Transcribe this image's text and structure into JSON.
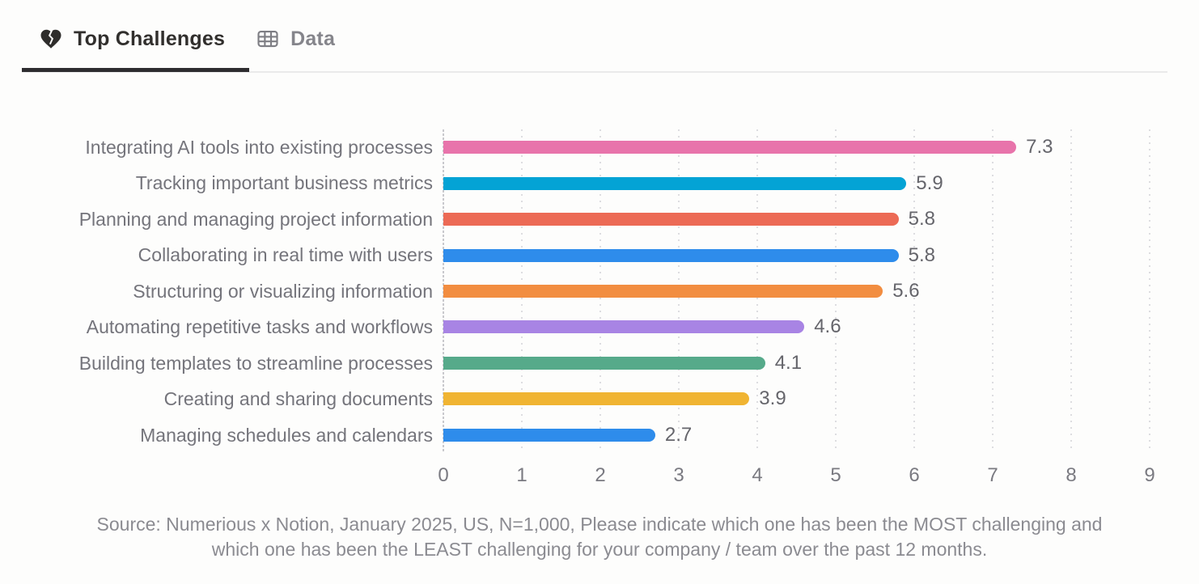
{
  "tabs": [
    {
      "label": "Top Challenges",
      "icon": "broken-heart-icon",
      "active": true
    },
    {
      "label": "Data",
      "icon": "table-icon",
      "active": false
    }
  ],
  "chart_data": {
    "type": "bar",
    "orientation": "horizontal",
    "title": "Top Challenges",
    "categories": [
      "Integrating AI tools into existing processes",
      "Tracking important business metrics",
      "Planning and managing project information",
      "Collaborating in real time with users",
      "Structuring or visualizing information",
      "Automating repetitive tasks and workflows",
      "Building templates to streamline processes",
      "Creating and sharing documents",
      "Managing schedules and calendars"
    ],
    "values": [
      7.3,
      5.9,
      5.8,
      5.8,
      5.6,
      4.6,
      4.1,
      3.9,
      2.7
    ],
    "bar_colors": [
      "#e874ab",
      "#04a3d5",
      "#ec6a55",
      "#2e8ceb",
      "#f28d40",
      "#a884e4",
      "#56aa8a",
      "#f0b432",
      "#2e8ceb"
    ],
    "xlim": [
      0,
      9
    ],
    "xticks": [
      0,
      1,
      2,
      3,
      4,
      5,
      6,
      7,
      8,
      9
    ],
    "grid": "vertical-dotted",
    "legend": "none",
    "value_label_decimals": 1
  },
  "footer": {
    "line1": "Source: Numerious x Notion, January 2025, US, N=1,000, Please indicate which one has been the MOST challenging and",
    "line2": "which one has been the LEAST challenging for your company /  team over the past 12 months."
  }
}
